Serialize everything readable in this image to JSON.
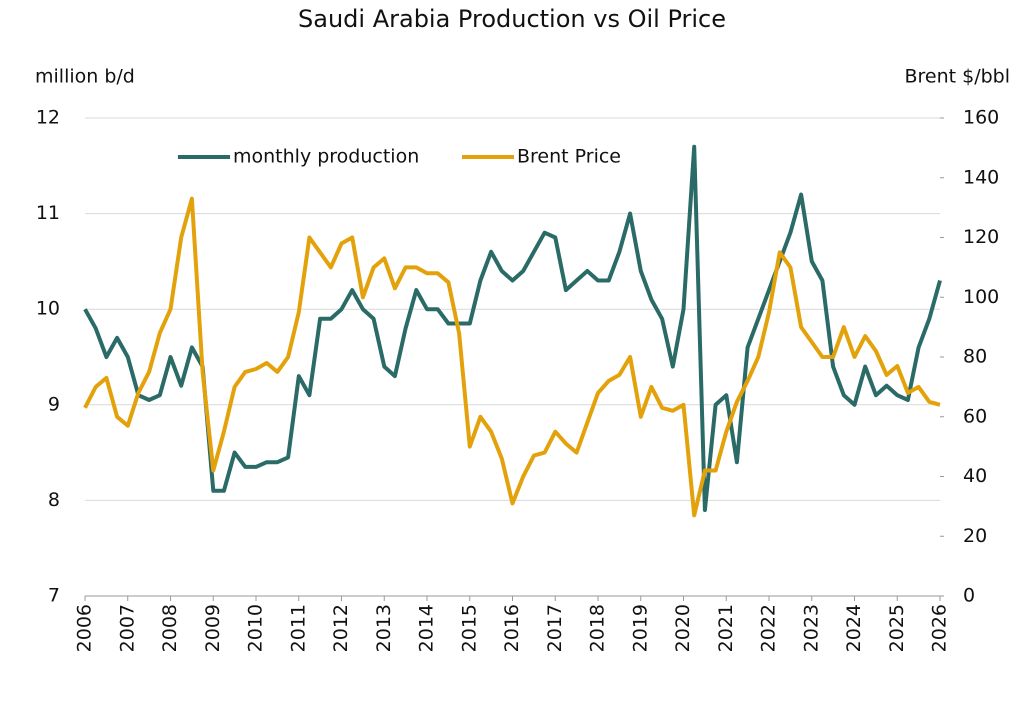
{
  "chart_data": {
    "type": "line",
    "title": "Saudi Arabia Production vs Oil Price",
    "y_label": "million b/d",
    "y2_label": "Brent $/bbl",
    "x": [
      2006,
      2006.25,
      2006.5,
      2006.75,
      2007,
      2007.25,
      2007.5,
      2007.75,
      2008,
      2008.25,
      2008.5,
      2008.75,
      2009,
      2009.25,
      2009.5,
      2009.75,
      2010,
      2010.25,
      2010.5,
      2010.75,
      2011,
      2011.25,
      2011.5,
      2011.75,
      2012,
      2012.25,
      2012.5,
      2012.75,
      2013,
      2013.25,
      2013.5,
      2013.75,
      2014,
      2014.25,
      2014.5,
      2014.75,
      2015,
      2015.25,
      2015.5,
      2015.75,
      2016,
      2016.25,
      2016.5,
      2016.75,
      2017,
      2017.25,
      2017.5,
      2017.75,
      2018,
      2018.25,
      2018.5,
      2018.75,
      2019,
      2019.25,
      2019.5,
      2019.75,
      2020,
      2020.25,
      2020.5,
      2020.75,
      2021,
      2021.25,
      2021.5,
      2021.75,
      2022,
      2022.25,
      2022.5,
      2022.75,
      2023,
      2023.25,
      2023.5,
      2023.75,
      2024,
      2024.25,
      2024.5,
      2024.75,
      2025,
      2025.25,
      2025.5,
      2025.75,
      2026
    ],
    "series": [
      {
        "name": "monthly production",
        "color": "#2a6b67",
        "axis": "y",
        "values": [
          10.0,
          9.8,
          9.5,
          9.7,
          9.5,
          9.1,
          9.05,
          9.1,
          9.5,
          9.2,
          9.6,
          9.4,
          8.1,
          8.1,
          8.5,
          8.35,
          8.35,
          8.4,
          8.4,
          8.45,
          9.3,
          9.1,
          9.9,
          9.9,
          10.0,
          10.2,
          10.0,
          9.9,
          9.4,
          9.3,
          9.8,
          10.2,
          10.0,
          10.0,
          9.85,
          9.85,
          9.85,
          10.3,
          10.6,
          10.4,
          10.3,
          10.4,
          10.6,
          10.8,
          10.75,
          10.2,
          10.3,
          10.4,
          10.3,
          10.3,
          10.6,
          11.0,
          10.4,
          10.1,
          9.9,
          9.4,
          10.0,
          11.7,
          7.9,
          9.0,
          9.1,
          8.4,
          9.6,
          9.9,
          10.2,
          10.5,
          10.8,
          11.2,
          10.5,
          10.3,
          9.4,
          9.1,
          9.0,
          9.4,
          9.1,
          9.2,
          9.1,
          9.05,
          9.6,
          9.9,
          10.3
        ]
      },
      {
        "name": "Brent Price",
        "color": "#e3a20c",
        "axis": "y2",
        "values": [
          63,
          70,
          73,
          60,
          57,
          68,
          75,
          88,
          96,
          120,
          133,
          75,
          42,
          55,
          70,
          75,
          76,
          78,
          75,
          80,
          95,
          120,
          115,
          110,
          118,
          120,
          100,
          110,
          113,
          103,
          110,
          110,
          108,
          108,
          105,
          88,
          50,
          60,
          55,
          46,
          31,
          40,
          47,
          48,
          55,
          51,
          48,
          58,
          68,
          72,
          74,
          80,
          60,
          70,
          63,
          62,
          64,
          27,
          42,
          42,
          55,
          65,
          72,
          80,
          95,
          115,
          110,
          90,
          85,
          80,
          80,
          90,
          80,
          87,
          82,
          74,
          77,
          68,
          70,
          65,
          64
        ]
      }
    ],
    "xlim": [
      2006,
      2026
    ],
    "xticks": [
      2006,
      2007,
      2008,
      2009,
      2010,
      2011,
      2012,
      2013,
      2014,
      2015,
      2016,
      2017,
      2018,
      2019,
      2020,
      2021,
      2022,
      2023,
      2024,
      2025,
      2026
    ],
    "ylim": [
      7,
      12
    ],
    "yticks": [
      7,
      8,
      9,
      10,
      11,
      12
    ],
    "y2lim": [
      0,
      160
    ],
    "y2ticks": [
      0,
      20,
      40,
      60,
      80,
      100,
      120,
      140,
      160
    ],
    "grid": true,
    "legend": "top"
  }
}
